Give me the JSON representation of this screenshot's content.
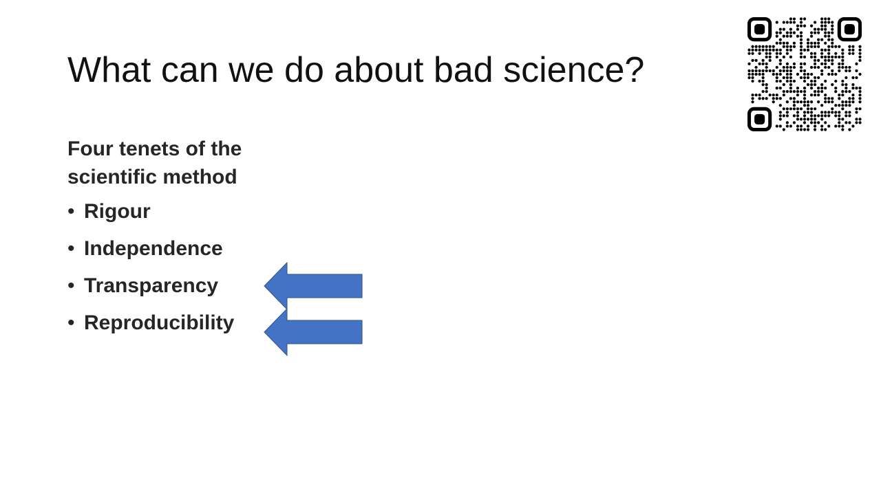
{
  "slide": {
    "title": "What can we do about bad science?",
    "subheading": "Four tenets of the scientific method",
    "bullet_glyph": "•",
    "bullets": [
      {
        "label": "Rigour",
        "highlighted": false
      },
      {
        "label": "Independence",
        "highlighted": false
      },
      {
        "label": "Transparency",
        "highlighted": true
      },
      {
        "label": "Reproducibility",
        "highlighted": true
      }
    ],
    "arrow_icon": "left-arrow-icon",
    "arrow_color": "#4472C4",
    "arrow_stroke": "#2F528F",
    "qr_icon": "qr-code-icon"
  }
}
